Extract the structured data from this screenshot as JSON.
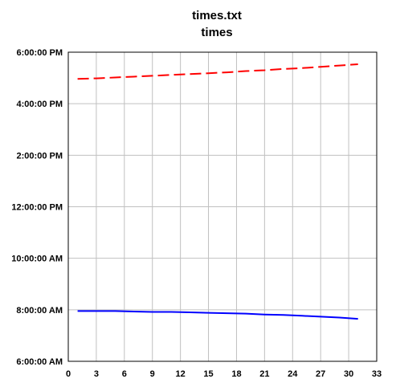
{
  "chart_data": {
    "type": "line",
    "title": "times.txt",
    "subtitle": "times",
    "xlabel": "",
    "ylabel": "",
    "xlim": [
      0,
      33
    ],
    "ylim": [
      "6:00:00 AM",
      "6:00:00 PM"
    ],
    "x_ticks": [
      "0",
      "3",
      "6",
      "9",
      "12",
      "15",
      "18",
      "21",
      "24",
      "27",
      "30",
      "33"
    ],
    "y_ticks": [
      "6:00:00 AM",
      "8:00:00 AM",
      "10:00:00 AM",
      "12:00:00 PM",
      "2:00:00 PM",
      "4:00:00 PM",
      "6:00:00 PM"
    ],
    "grid": true,
    "legend": "none",
    "series": [
      {
        "color": "#ff0000",
        "style": "dashed",
        "x": [
          1,
          3,
          5,
          7,
          9,
          11,
          13,
          15,
          17,
          19,
          21,
          23,
          25,
          27,
          29,
          31
        ],
        "y": [
          "4:58:00 PM",
          "4:59:00 PM",
          "5:01:00 PM",
          "5:03:00 PM",
          "5:05:00 PM",
          "5:07:00 PM",
          "5:09:00 PM",
          "5:11:00 PM",
          "5:13:00 PM",
          "5:16:00 PM",
          "5:18:00 PM",
          "5:21:00 PM",
          "5:23:00 PM",
          "5:26:00 PM",
          "5:29:00 PM",
          "5:32:00 PM"
        ]
      },
      {
        "color": "#0000ff",
        "style": "solid",
        "x": [
          1,
          3,
          5,
          7,
          9,
          11,
          13,
          15,
          17,
          19,
          21,
          23,
          25,
          27,
          29,
          31
        ],
        "y": [
          "7:57:00 AM",
          "7:57:00 AM",
          "7:57:00 AM",
          "7:56:00 AM",
          "7:55:00 AM",
          "7:55:00 AM",
          "7:54:00 AM",
          "7:53:00 AM",
          "7:52:00 AM",
          "7:51:00 AM",
          "7:49:00 AM",
          "7:48:00 AM",
          "7:46:00 AM",
          "7:44:00 AM",
          "7:42:00 AM",
          "7:39:00 AM"
        ]
      }
    ]
  }
}
